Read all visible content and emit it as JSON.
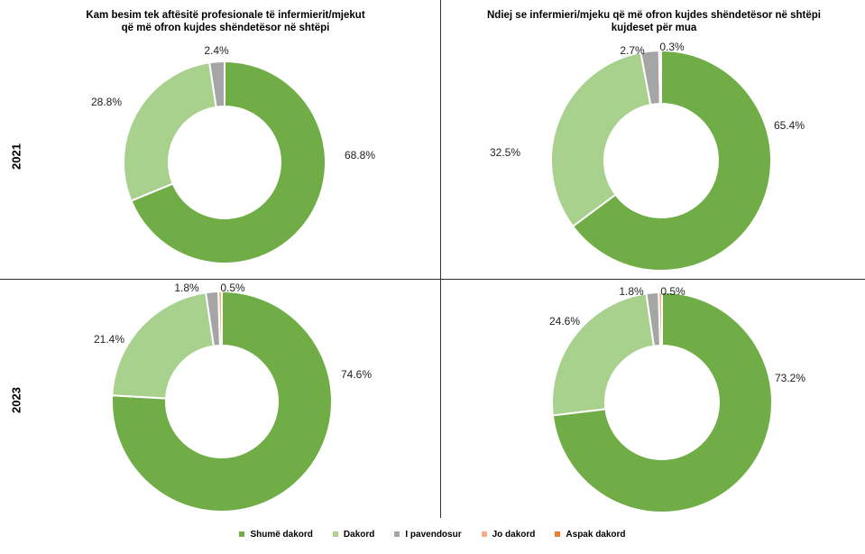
{
  "titles": {
    "left": [
      "Kam besim tek aftësitë profesionale të infermierit/mjekut",
      "që më ofron kujdes shëndetësor në shtëpi"
    ],
    "right": [
      "Ndiej se infermieri/mjeku që më ofron kujdes shëndetësor në shtëpi",
      "kujdeset për mua"
    ]
  },
  "row_labels": {
    "top": "2021",
    "bottom": "2023"
  },
  "legend": [
    {
      "label": "Shumë dakord",
      "color": "#70ad47"
    },
    {
      "label": "Dakord",
      "color": "#a9d18e"
    },
    {
      "label": "I pavendosur",
      "color": "#a5a5a5"
    },
    {
      "label": "Jo dakord",
      "color": "#f4b183"
    },
    {
      "label": "Aspak dakord",
      "color": "#ed7d31"
    }
  ],
  "chart_data": [
    {
      "type": "pie",
      "title": "Kam besim tek aftësitë profesionale të infermierit/mjekut që më ofron kujdes shëndetësor në shtëpi",
      "year": "2021",
      "categories": [
        "Shumë dakord",
        "Dakord",
        "I pavendosur",
        "Jo dakord",
        "Aspak dakord"
      ],
      "values": [
        68.8,
        28.8,
        2.4,
        0,
        0
      ],
      "labels": [
        "68.8%",
        "28.8%",
        "2.4%",
        "",
        ""
      ]
    },
    {
      "type": "pie",
      "title": "Ndiej se infermieri/mjeku që më ofron kujdes shëndetësor në shtëpi kujdeset për mua",
      "year": "2021",
      "categories": [
        "Shumë dakord",
        "Dakord",
        "I pavendosur",
        "Jo dakord",
        "Aspak dakord"
      ],
      "values": [
        65.4,
        32.5,
        2.7,
        0.3,
        0
      ],
      "labels": [
        "65.4%",
        "32.5%",
        "2.7%",
        "0.3%",
        ""
      ]
    },
    {
      "type": "pie",
      "year": "2023",
      "categories": [
        "Shumë dakord",
        "Dakord",
        "I pavendosur",
        "Jo dakord",
        "Aspak dakord"
      ],
      "values": [
        74.6,
        21.4,
        1.8,
        0.5,
        0
      ],
      "labels": [
        "74.6%",
        "21.4%",
        "1.8%",
        "0.5%",
        ""
      ]
    },
    {
      "type": "pie",
      "year": "2023",
      "categories": [
        "Shumë dakord",
        "Dakord",
        "I pavendosur",
        "Jo dakord",
        "Aspak dakord"
      ],
      "values": [
        73.2,
        24.6,
        1.8,
        0.5,
        0
      ],
      "labels": [
        "73.2%",
        "24.6%",
        "1.8%",
        "0.5%",
        ""
      ]
    }
  ]
}
